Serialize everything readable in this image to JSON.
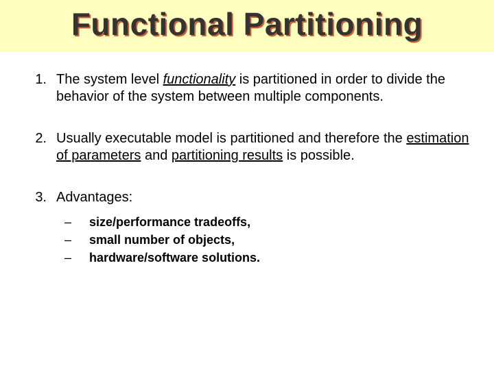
{
  "title": "Functional Partitioning",
  "items": [
    {
      "number": "1.",
      "pre": "The system level ",
      "keyword": "functionality",
      "post": " is partitioned in order to divide the behavior of the system between multiple components."
    },
    {
      "number": "2.",
      "pre": "Usually executable model is partitioned and therefore the ",
      "u1": "estimation of parameters",
      "mid": " and ",
      "u2": "partitioning results",
      "post": " is possible."
    },
    {
      "number": "3.",
      "pre": "Advantages:",
      "subs": [
        "size/performance tradeoffs,",
        "small number of objects,",
        "hardware/software solutions."
      ]
    }
  ],
  "styles": {
    "title_bg": "#ffffc0",
    "title_color": "#333333",
    "title_shadow": "#d06030",
    "body_color": "#000000",
    "title_fontsize": 46,
    "body_fontsize": 20,
    "sub_fontsize": 18
  }
}
